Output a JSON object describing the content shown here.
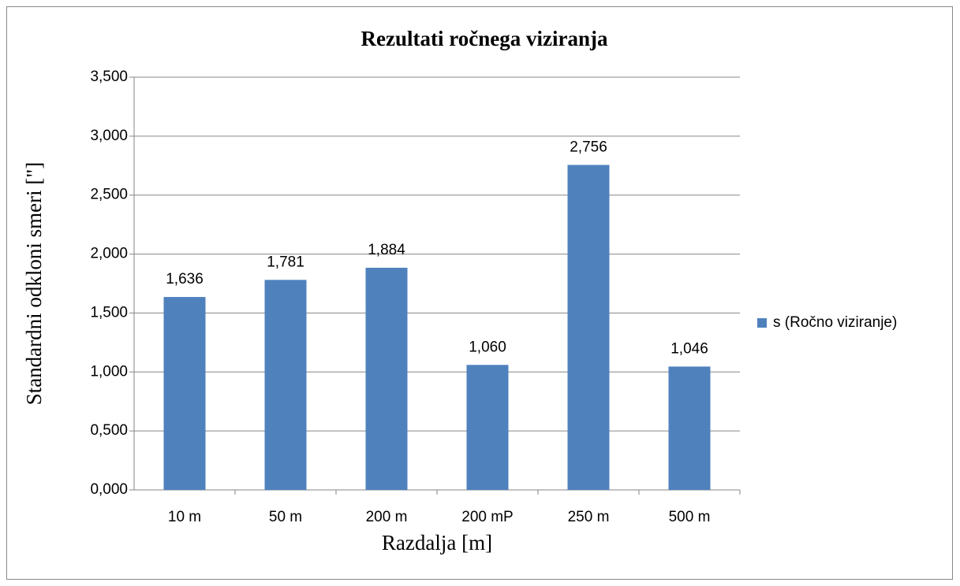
{
  "chart_data": {
    "type": "bar",
    "title": "Rezultati ročnega viziranja",
    "x_label": "Razdalja [m]",
    "y_label": "Standardni odkloni smeri [\"]",
    "categories": [
      "10 m",
      "50 m",
      "200 m",
      "200 mP",
      "250 m",
      "500 m"
    ],
    "series": [
      {
        "name": "s (Ročno viziranje)",
        "color": "#4f81bd",
        "values": [
          1.636,
          1.781,
          1.884,
          1.06,
          2.756,
          1.046
        ],
        "value_labels": [
          "1,636",
          "1,781",
          "1,884",
          "1,060",
          "2,756",
          "1,046"
        ]
      }
    ],
    "ylim": [
      0,
      3.5
    ],
    "yticks": [
      {
        "value": 0,
        "label": "0,000"
      },
      {
        "value": 0.5,
        "label": "0,500"
      },
      {
        "value": 1,
        "label": "1,000"
      },
      {
        "value": 1.5,
        "label": "1,500"
      },
      {
        "value": 2,
        "label": "2,000"
      },
      {
        "value": 2.5,
        "label": "2,500"
      },
      {
        "value": 3,
        "label": "3,000"
      },
      {
        "value": 3.5,
        "label": "3,500"
      }
    ],
    "grid": true,
    "legend": "right"
  }
}
